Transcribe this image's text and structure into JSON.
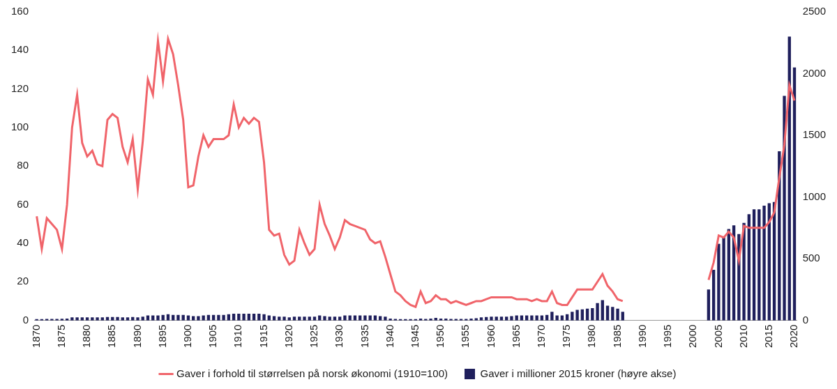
{
  "chart_data": {
    "type": "bar",
    "categories": [
      1870,
      null,
      null,
      null,
      null,
      1875,
      null,
      null,
      null,
      null,
      1880,
      null,
      null,
      null,
      null,
      1885,
      null,
      null,
      null,
      null,
      1890,
      null,
      null,
      null,
      null,
      1895,
      null,
      null,
      null,
      null,
      1900,
      null,
      null,
      null,
      null,
      1905,
      null,
      null,
      null,
      null,
      1910,
      null,
      null,
      null,
      null,
      1915,
      null,
      null,
      null,
      null,
      1920,
      null,
      null,
      null,
      null,
      1925,
      null,
      null,
      null,
      null,
      1930,
      null,
      null,
      null,
      null,
      1935,
      null,
      null,
      null,
      null,
      1940,
      null,
      null,
      null,
      null,
      1945,
      null,
      null,
      null,
      null,
      1950,
      null,
      null,
      null,
      null,
      1955,
      null,
      null,
      null,
      null,
      1960,
      null,
      null,
      null,
      null,
      1965,
      null,
      null,
      null,
      null,
      1970,
      null,
      null,
      null,
      null,
      1975,
      null,
      null,
      null,
      null,
      1980,
      null,
      null,
      null,
      null,
      1985,
      null,
      null,
      null,
      null,
      1990,
      null,
      null,
      null,
      null,
      1995,
      null,
      null,
      null,
      null,
      2000,
      null,
      null,
      null,
      null,
      2005,
      null,
      null,
      null,
      null,
      2010,
      null,
      null,
      null,
      null,
      2015,
      null,
      null,
      null,
      null,
      2020
    ],
    "series": [
      {
        "name": "Gaver i millioner 2015 kroner (høyre akse)",
        "type": "bar",
        "axis": "y2",
        "color": "#1f1f5c",
        "values": [
          10,
          10,
          12,
          12,
          12,
          14,
          15,
          25,
          25,
          25,
          25,
          25,
          25,
          25,
          28,
          28,
          28,
          25,
          25,
          28,
          25,
          30,
          40,
          40,
          40,
          45,
          50,
          45,
          45,
          45,
          40,
          35,
          35,
          40,
          45,
          45,
          45,
          45,
          50,
          55,
          55,
          55,
          55,
          55,
          55,
          50,
          40,
          35,
          30,
          30,
          25,
          30,
          30,
          30,
          30,
          30,
          40,
          35,
          30,
          30,
          30,
          40,
          40,
          40,
          40,
          40,
          40,
          40,
          35,
          30,
          15,
          12,
          10,
          10,
          10,
          10,
          15,
          12,
          15,
          20,
          15,
          15,
          12,
          12,
          12,
          12,
          15,
          18,
          25,
          28,
          30,
          30,
          30,
          30,
          35,
          40,
          40,
          40,
          40,
          40,
          40,
          45,
          70,
          40,
          40,
          50,
          70,
          85,
          90,
          95,
          100,
          140,
          165,
          120,
          110,
          95,
          70,
          null,
          null,
          null,
          null,
          null,
          null,
          null,
          null,
          null,
          null,
          null,
          null,
          null,
          null,
          null,
          null,
          250,
          410,
          620,
          680,
          740,
          770,
          700,
          790,
          860,
          900,
          900,
          930,
          950,
          960,
          1370,
          1820,
          2300,
          2050
        ]
      },
      {
        "name": "Gaver i forhold til størrelsen på norsk økonomi (1910=100)",
        "type": "line",
        "color": "#f0646a",
        "values": [
          54,
          37,
          53,
          50,
          47,
          37,
          60,
          100,
          117,
          92,
          85,
          88,
          81,
          80,
          104,
          107,
          105,
          90,
          82,
          94,
          68,
          93,
          125,
          117,
          145,
          124,
          146,
          138,
          122,
          104,
          69,
          70,
          85,
          96,
          90,
          94,
          94,
          94,
          96,
          112,
          100,
          105,
          102,
          105,
          103,
          82,
          47,
          44,
          45,
          34,
          29,
          31,
          47,
          40,
          34,
          37,
          60,
          50,
          44,
          37,
          43,
          52,
          50,
          49,
          48,
          47,
          42,
          40,
          41,
          33,
          24,
          15,
          13,
          10,
          8,
          7,
          15,
          9,
          10,
          13,
          11,
          11,
          9,
          10,
          9,
          8,
          9,
          10,
          10,
          11,
          12,
          12,
          12,
          12,
          12,
          11,
          11,
          11,
          10,
          11,
          10,
          10,
          15,
          9,
          8,
          8,
          12,
          16,
          16,
          16,
          16,
          20,
          24,
          18,
          15,
          11,
          10,
          null,
          null,
          null,
          null,
          null,
          null,
          null,
          null,
          null,
          null,
          null,
          null,
          null,
          null,
          null,
          null,
          21,
          30,
          44,
          43,
          46,
          43,
          31,
          49,
          48,
          48,
          48,
          48,
          51,
          56,
          74,
          91,
          122,
          114
        ]
      }
    ],
    "ylim": [
      0,
      160
    ],
    "yticks": [
      0,
      20,
      40,
      60,
      80,
      100,
      120,
      140,
      160
    ],
    "y2lim": [
      0,
      2500
    ],
    "y2ticks": [
      0,
      500,
      1000,
      1500,
      2000,
      2500
    ],
    "grid": false,
    "legend": "bottom"
  }
}
